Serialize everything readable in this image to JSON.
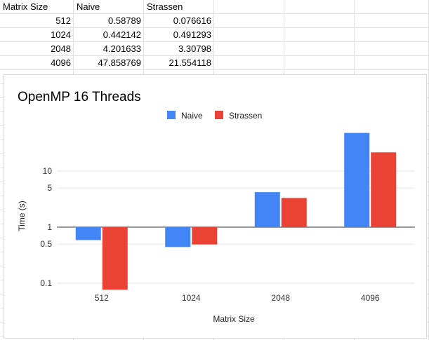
{
  "spreadsheet": {
    "rows": [
      [
        "Matrix Size",
        "Naive",
        "Strassen"
      ],
      [
        "512",
        "0.58789",
        "0.076616"
      ],
      [
        "1024",
        "0.442142",
        "0.491293"
      ],
      [
        "2048",
        "4.201633",
        "3.30798"
      ],
      [
        "4096",
        "47.858769",
        "21.554118"
      ]
    ]
  },
  "colors": {
    "naive": "#4285f4",
    "strassen": "#ea4335",
    "gridline": "#e6e6e6",
    "baseline": "#333333"
  },
  "chart_data": {
    "type": "bar",
    "title": "OpenMP 16 Threads",
    "xlabel": "Matrix Size",
    "ylabel": "Time (s)",
    "y_scale": "log",
    "ylim": [
      0.06,
      80
    ],
    "y_ticks": [
      0.1,
      0.5,
      1,
      5,
      10
    ],
    "y_tick_labels": [
      "0.1",
      "0.5",
      "1",
      "5",
      "10"
    ],
    "baseline": 1,
    "legend_position": "top",
    "categories": [
      "512",
      "1024",
      "2048",
      "4096"
    ],
    "series": [
      {
        "name": "Naive",
        "values": [
          0.58789,
          0.442142,
          4.201633,
          47.858769
        ]
      },
      {
        "name": "Strassen",
        "values": [
          0.076616,
          0.491293,
          3.30798,
          21.554118
        ]
      }
    ]
  }
}
